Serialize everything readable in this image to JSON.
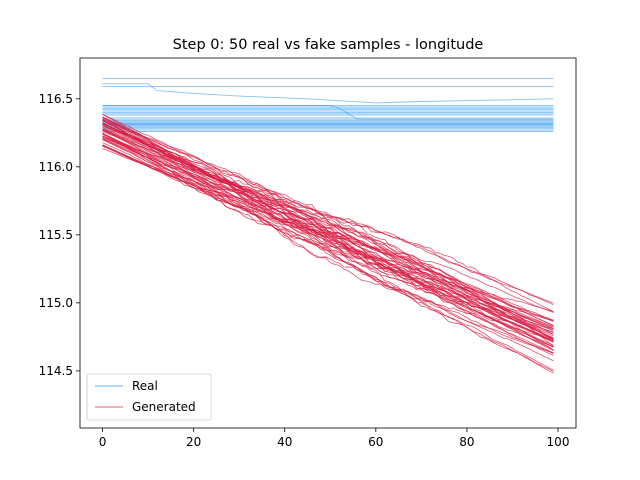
{
  "chart_data": {
    "type": "line",
    "title": "Step 0: 50 real vs fake samples - longitude",
    "xlabel": "",
    "ylabel": "",
    "xlim": [
      -4.95,
      103.95
    ],
    "ylim": [
      114.08,
      116.8
    ],
    "xticks": [
      0,
      20,
      40,
      60,
      80,
      100
    ],
    "yticks": [
      114.5,
      115.0,
      115.5,
      116.0,
      116.5
    ],
    "ytick_labels": [
      "114.5",
      "115.0",
      "115.5",
      "116.0",
      "116.5"
    ],
    "grid": false,
    "legend_position": "lower-left",
    "n_points": 100,
    "colors": {
      "real": "#1f8ff0",
      "generated": "#d81b40"
    },
    "series": [
      {
        "name": "Real",
        "type": "flat",
        "levels": [
          116.65,
          116.59,
          116.45,
          116.44,
          116.43,
          116.42,
          116.41,
          116.4,
          116.39,
          116.38,
          116.36,
          116.35,
          116.34,
          116.33,
          116.33,
          116.32,
          116.32,
          116.31,
          116.31,
          116.3,
          116.3,
          116.29,
          116.28,
          116.27,
          116.26
        ]
      },
      {
        "name": "Real",
        "type": "step",
        "x": [
          0,
          10,
          12,
          20,
          30,
          45,
          60,
          70,
          85,
          99
        ],
        "y": [
          116.61,
          116.61,
          116.56,
          116.54,
          116.52,
          116.5,
          116.47,
          116.48,
          116.49,
          116.5
        ]
      },
      {
        "name": "Real",
        "type": "step",
        "x": [
          0,
          50,
          52,
          53,
          54,
          56,
          99
        ],
        "y": [
          116.45,
          116.45,
          116.43,
          116.41,
          116.39,
          116.35,
          116.35
        ]
      },
      {
        "name": "Generated",
        "type": "trend",
        "count": 50,
        "start_range": [
          116.13,
          116.4
        ],
        "end_range": [
          114.2,
          115.1
        ],
        "end_mean": 114.75
      }
    ]
  }
}
